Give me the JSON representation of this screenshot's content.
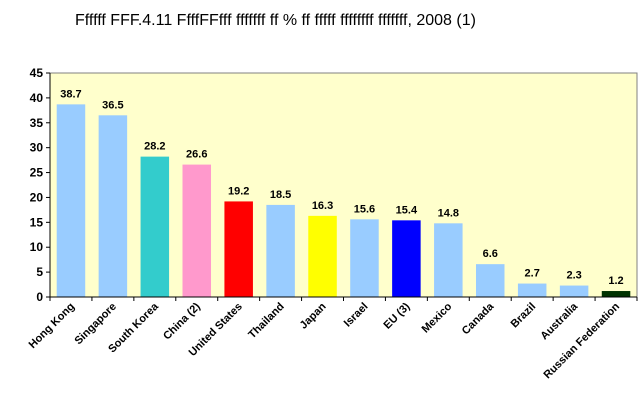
{
  "chart_data": {
    "type": "bar",
    "title": "Ffffff FFF.4.11 FfffFFfff fffffff ff % ff fffff ffffffff fffffff, 2008 (1)",
    "categories": [
      "Hong Kong",
      "Singapore",
      "South Korea",
      "China (2)",
      "United States",
      "Thailand",
      "Japan",
      "Israel",
      "EU (3)",
      "Mexico",
      "Canada",
      "Brazil",
      "Australia",
      "Russian Federation"
    ],
    "values": [
      38.7,
      36.5,
      28.2,
      26.6,
      19.2,
      18.5,
      16.3,
      15.6,
      15.4,
      14.8,
      6.6,
      2.7,
      2.3,
      1.2
    ],
    "data_labels": [
      "38.7",
      "36.5",
      "28.2",
      "26.6",
      "19.2",
      "18.5",
      "16.3",
      "15.6",
      "15.4",
      "14.8",
      "6.6",
      "2.7",
      "2.3",
      "1.2"
    ],
    "colors": [
      "#99ccff",
      "#99ccff",
      "#33cccc",
      "#ff99cc",
      "#ff0000",
      "#99ccff",
      "#ffff00",
      "#99ccff",
      "#0000ff",
      "#99ccff",
      "#99ccff",
      "#99ccff",
      "#99ccff",
      "#003300"
    ],
    "ylim": [
      0,
      45
    ],
    "yticks": [
      0,
      5,
      10,
      15,
      20,
      25,
      30,
      35,
      40,
      45
    ],
    "xlabel": "",
    "ylabel": "",
    "grid": false,
    "plot_background": "#ffffcc"
  }
}
